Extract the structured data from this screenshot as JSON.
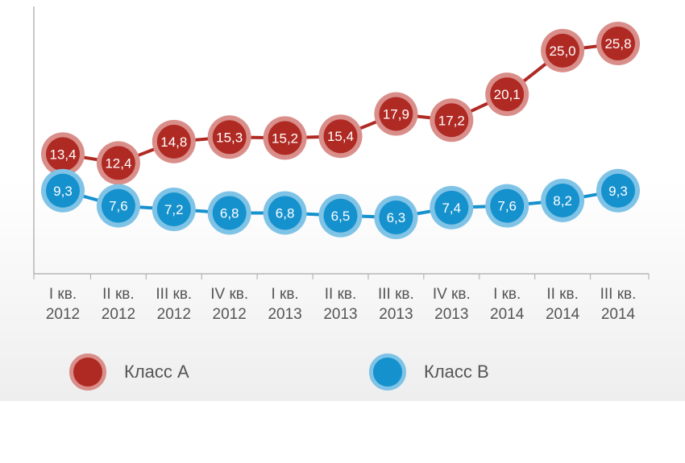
{
  "chart_data": {
    "type": "line",
    "categories": [
      [
        "I кв.",
        "2012"
      ],
      [
        "II кв.",
        "2012"
      ],
      [
        "III кв.",
        "2012"
      ],
      [
        "IV кв.",
        "2012"
      ],
      [
        "I кв.",
        "2013"
      ],
      [
        "II кв.",
        "2013"
      ],
      [
        "III кв.",
        "2013"
      ],
      [
        "IV кв.",
        "2013"
      ],
      [
        "I кв.",
        "2014"
      ],
      [
        "II кв.",
        "2014"
      ],
      [
        "III кв.",
        "2014"
      ]
    ],
    "series": [
      {
        "name": "Класс А",
        "color": "#b02a24",
        "values": [
          13.4,
          12.4,
          14.8,
          15.3,
          15.2,
          15.4,
          17.9,
          17.2,
          20.1,
          25.0,
          25.8
        ],
        "labels": [
          "13,4",
          "12,4",
          "14,8",
          "15,3",
          "15,2",
          "15,4",
          "17,9",
          "17,2",
          "20,1",
          "25,0",
          "25,8"
        ]
      },
      {
        "name": "Класс В",
        "color": "#1591cd",
        "values": [
          9.3,
          7.6,
          7.2,
          6.8,
          6.8,
          6.5,
          6.3,
          7.4,
          7.6,
          8.2,
          9.3
        ],
        "labels": [
          "9,3",
          "7,6",
          "7,2",
          "6,8",
          "6,8",
          "6,5",
          "6,3",
          "7,4",
          "7,6",
          "8,2",
          "9,3"
        ]
      }
    ],
    "ylim": [
      0,
      28
    ],
    "grid": false,
    "legend_position": "bottom"
  },
  "legend": {
    "class_a": {
      "label": "Класс А",
      "color": "#b02a24",
      "halo": "#d98e8a"
    },
    "class_b": {
      "label": "Класс В",
      "color": "#1591cd",
      "halo": "#7fc3e6"
    }
  }
}
